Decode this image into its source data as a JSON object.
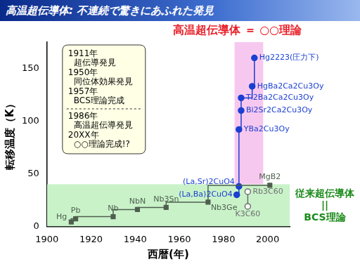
{
  "chart_data": {
    "type": "line",
    "title": "高温超伝導体: 不連続で驚きにあふれた発見",
    "x_label": "西暦(年)",
    "y_label": "転移温度（K）",
    "xlim": [
      1900,
      2010
    ],
    "xticks": [
      1900,
      1920,
      1940,
      1960,
      1980,
      2000
    ],
    "ylim": [
      0,
      175
    ],
    "yticks": [
      0,
      50,
      100,
      150
    ],
    "grid": false,
    "series": [
      {
        "color": "#4f5f4f",
        "marker": "square",
        "line_style": "steps-post",
        "x": [
          1911,
          1913,
          1930,
          1941,
          1954,
          1973,
          2001
        ],
        "values": [
          4.2,
          7.2,
          9.2,
          16,
          18,
          23,
          39
        ],
        "point_labels": [
          "Hg",
          "Pb",
          "Nb",
          "NbN",
          "Nb3Sn",
          "Nb3Ge",
          "MgB2"
        ]
      },
      {
        "color": "#707070",
        "marker": "open-circle",
        "line_style": "solid",
        "x": [
          1991,
          1991
        ],
        "values": [
          19,
          33
        ],
        "point_labels": [
          "K3C60",
          "Rb3C60"
        ]
      },
      {
        "color": "#1a3fd1",
        "marker": "circle",
        "line_style": "steps-pre",
        "x": [
          1986,
          1987,
          1987,
          1988,
          1988,
          1993,
          1994
        ],
        "values": [
          30,
          38,
          92,
          110,
          122,
          133,
          160
        ],
        "point_labels": [
          "(La,Ba)2CuO4",
          "(La,Sr)2CuO4",
          "YBa2Cu3Oy",
          "Bi2Sr2Ca2Cu3Oy",
          "Tl2Ba2Ca2Cu3Oy",
          "HgBa2Ca2Cu3Oy",
          "Hg2223(圧力下)"
        ]
      }
    ],
    "bands": [
      {
        "axis": "y",
        "from": 0,
        "to": 40,
        "color": "#c9f2c9"
      },
      {
        "axis": "x",
        "from": 1985,
        "to": 1998,
        "y_from": 40,
        "y_to": 175,
        "color": "#f7c8ef"
      }
    ],
    "annotations": {
      "headline": "高温超伝導体 ＝ ○○理論",
      "conventional": [
        "従来超伝導体",
        "||",
        "BCS理論"
      ],
      "timeline": [
        [
          "1911年",
          "超伝導発見"
        ],
        [
          "1950年",
          "同位体効果発見"
        ],
        [
          "1957年",
          "BCS理論完成"
        ]
      ],
      "timeline_after": [
        [
          "1986年",
          "高温超伝導発見"
        ],
        [
          "20XX年",
          "○○理論完成!?"
        ]
      ]
    }
  }
}
